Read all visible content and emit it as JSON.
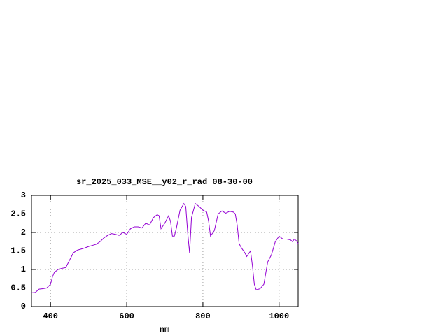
{
  "chart_data": {
    "type": "line",
    "title": "sr_2025_033_MSE__y02_r_rad 08-30-00",
    "x_label": "nm",
    "x": [
      350,
      360,
      370,
      380,
      390,
      400,
      405,
      410,
      420,
      430,
      440,
      450,
      460,
      470,
      480,
      490,
      500,
      510,
      520,
      530,
      540,
      550,
      560,
      570,
      580,
      590,
      600,
      610,
      620,
      630,
      640,
      650,
      660,
      670,
      680,
      685,
      690,
      700,
      710,
      715,
      720,
      725,
      730,
      740,
      750,
      755,
      760,
      765,
      770,
      780,
      790,
      800,
      810,
      815,
      820,
      830,
      840,
      850,
      860,
      870,
      880,
      885,
      890,
      895,
      900,
      910,
      915,
      925,
      930,
      935,
      940,
      950,
      960,
      970,
      980,
      990,
      1000,
      1010,
      1020,
      1030,
      1035,
      1040,
      1045,
      1050
    ],
    "series": [
      {
        "color": "#9400d3",
        "values": [
          0.37,
          0.38,
          0.47,
          0.48,
          0.5,
          0.6,
          0.8,
          0.92,
          1.0,
          1.03,
          1.05,
          1.25,
          1.45,
          1.52,
          1.55,
          1.58,
          1.62,
          1.65,
          1.68,
          1.75,
          1.85,
          1.92,
          1.97,
          1.95,
          1.92,
          2.0,
          1.95,
          2.1,
          2.15,
          2.15,
          2.12,
          2.25,
          2.2,
          2.4,
          2.48,
          2.45,
          2.1,
          2.25,
          2.45,
          2.3,
          1.9,
          1.9,
          2.1,
          2.6,
          2.78,
          2.7,
          2.0,
          1.45,
          2.4,
          2.78,
          2.7,
          2.6,
          2.55,
          2.3,
          1.9,
          2.05,
          2.5,
          2.58,
          2.52,
          2.57,
          2.55,
          2.5,
          2.2,
          1.7,
          1.6,
          1.45,
          1.35,
          1.5,
          1.1,
          0.6,
          0.45,
          0.48,
          0.6,
          1.2,
          1.4,
          1.75,
          1.9,
          1.82,
          1.82,
          1.8,
          1.75,
          1.82,
          1.78,
          1.7
        ]
      }
    ],
    "xlim": [
      350,
      1050
    ],
    "xticks": [
      400,
      600,
      800,
      1000
    ],
    "ylim": [
      0,
      3
    ],
    "yticks": [
      0,
      0.5,
      1,
      1.5,
      2,
      2.5,
      3
    ],
    "grid": true
  }
}
